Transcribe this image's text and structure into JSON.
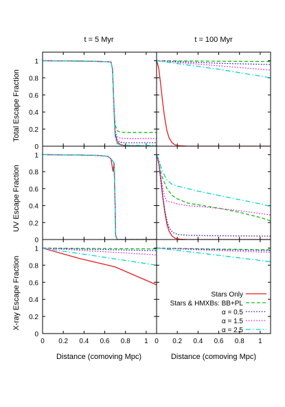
{
  "chart_data": {
    "type": "line",
    "layout": "3x2 grid of panels with shared x axes",
    "column_titles": [
      "t = 5 Myr",
      "t = 100 Myr"
    ],
    "row_ylabels": [
      "Total Escape Fraction",
      "UV Escape Fraction",
      "X-ray Escape Fraction"
    ],
    "xlabel": "Distance (comoving Mpc)",
    "xlim": [
      0,
      1.1
    ],
    "ylim": [
      0,
      1.1
    ],
    "xticks": [
      "0",
      "0.2",
      "0.4",
      "0.6",
      "0.8",
      "1"
    ],
    "yticks": [
      "0",
      "0.2",
      "0.4",
      "0.6",
      "0.8",
      "1"
    ],
    "grid": false,
    "legend": {
      "placement": "bottom-right of x-ray t = 100 Myr panel",
      "entries": [
        {
          "label": "Stars Only",
          "color": "#e41a1c",
          "dash": "solid"
        },
        {
          "label": "Stars & HMXBs: BB+PL",
          "color": "#11bb11",
          "dash": "dashed"
        },
        {
          "label": "α = 0.5",
          "color": "#1a1abb",
          "dash": "dotted"
        },
        {
          "label": "α = 1.5",
          "color": "#dd22dd",
          "dash": "dotted"
        },
        {
          "label": "α = 2.5",
          "color": "#00d4d4",
          "dash": "dashdot"
        }
      ]
    },
    "panels": [
      {
        "row": "Total Escape Fraction",
        "column": "t = 5 Myr",
        "series": [
          {
            "name": "Stars Only",
            "x": [
              0,
              0.4,
              0.6,
              0.66,
              0.675,
              0.69,
              0.7,
              0.72,
              0.75,
              0.8,
              1.1
            ],
            "y": [
              1.0,
              0.995,
              0.99,
              0.985,
              0.9,
              0.4,
              0.15,
              0.05,
              0.02,
              0.005,
              0.0
            ]
          },
          {
            "name": "Stars & HMXBs: BB+PL",
            "x": [
              0,
              0.4,
              0.6,
              0.66,
              0.675,
              0.69,
              0.7,
              0.72,
              0.75,
              0.8,
              1.1
            ],
            "y": [
              1.0,
              0.995,
              0.99,
              0.985,
              0.9,
              0.45,
              0.25,
              0.18,
              0.165,
              0.16,
              0.16
            ]
          },
          {
            "name": "α = 0.5",
            "x": [
              0,
              0.4,
              0.6,
              0.66,
              0.675,
              0.69,
              0.7,
              0.72,
              0.75,
              0.8,
              1.1
            ],
            "y": [
              1.0,
              0.995,
              0.99,
              0.985,
              0.9,
              0.42,
              0.15,
              0.07,
              0.045,
              0.04,
              0.04
            ]
          },
          {
            "name": "α = 1.5",
            "x": [
              0,
              0.4,
              0.6,
              0.66,
              0.675,
              0.69,
              0.7,
              0.72,
              0.75,
              0.8,
              1.1
            ],
            "y": [
              1.0,
              0.995,
              0.99,
              0.985,
              0.9,
              0.44,
              0.18,
              0.11,
              0.095,
              0.09,
              0.09
            ]
          },
          {
            "name": "α = 2.5",
            "x": [
              0,
              0.4,
              0.6,
              0.66,
              0.675,
              0.69,
              0.7,
              0.72,
              0.75,
              0.8,
              1.1
            ],
            "y": [
              1.0,
              0.995,
              0.99,
              0.985,
              0.9,
              0.4,
              0.1,
              0.03,
              0.015,
              0.01,
              0.01
            ]
          }
        ]
      },
      {
        "row": "Total Escape Fraction",
        "column": "t = 100 Myr",
        "series": [
          {
            "name": "Stars Only",
            "x": [
              0,
              0.02,
              0.04,
              0.06,
              0.08,
              0.1,
              0.12,
              0.15,
              0.18,
              0.22,
              0.3,
              1.1
            ],
            "y": [
              1.0,
              0.92,
              0.72,
              0.5,
              0.32,
              0.18,
              0.1,
              0.04,
              0.015,
              0.005,
              0.0,
              0.0
            ]
          },
          {
            "name": "Stars & HMXBs: BB+PL",
            "x": [
              0,
              0.3,
              0.6,
              1.1
            ],
            "y": [
              1.0,
              0.997,
              0.994,
              0.99
            ]
          },
          {
            "name": "α = 0.5",
            "x": [
              0,
              0.3,
              0.6,
              1.1
            ],
            "y": [
              1.0,
              0.985,
              0.97,
              0.955
            ]
          },
          {
            "name": "α = 1.5",
            "x": [
              0,
              0.3,
              0.6,
              1.1
            ],
            "y": [
              1.0,
              0.97,
              0.94,
              0.89
            ]
          },
          {
            "name": "α = 2.5",
            "x": [
              0,
              0.3,
              0.6,
              0.9,
              1.1
            ],
            "y": [
              1.0,
              0.95,
              0.9,
              0.84,
              0.8
            ]
          }
        ]
      },
      {
        "row": "UV Escape Fraction",
        "column": "t = 5 Myr",
        "series": [
          {
            "name": "Stars Only",
            "x": [
              0,
              0.2,
              0.4,
              0.55,
              0.63,
              0.66,
              0.68,
              0.69,
              0.7,
              0.705,
              0.72,
              1.1
            ],
            "y": [
              1.0,
              0.998,
              0.995,
              0.99,
              0.98,
              0.95,
              0.8,
              0.9,
              0.4,
              0.05,
              0.0,
              0.0
            ]
          },
          {
            "name": "Stars & HMXBs: BB+PL",
            "x": [
              0,
              0.2,
              0.4,
              0.55,
              0.63,
              0.66,
              0.68,
              0.69,
              0.7,
              0.705,
              0.72,
              1.1
            ],
            "y": [
              1.0,
              0.998,
              0.995,
              0.99,
              0.98,
              0.95,
              0.92,
              0.9,
              0.4,
              0.05,
              0.0,
              0.0
            ]
          },
          {
            "name": "α = 0.5",
            "x": [
              0,
              0.2,
              0.4,
              0.55,
              0.63,
              0.66,
              0.68,
              0.69,
              0.7,
              0.705,
              0.72,
              1.1
            ],
            "y": [
              1.0,
              0.998,
              0.995,
              0.99,
              0.98,
              0.95,
              0.92,
              0.9,
              0.4,
              0.05,
              0.0,
              0.0
            ]
          },
          {
            "name": "α = 1.5",
            "x": [
              0,
              0.2,
              0.4,
              0.55,
              0.63,
              0.66,
              0.68,
              0.69,
              0.7,
              0.705,
              0.72,
              1.1
            ],
            "y": [
              1.0,
              0.998,
              0.995,
              0.99,
              0.98,
              0.95,
              0.92,
              0.9,
              0.4,
              0.05,
              0.0,
              0.0
            ]
          },
          {
            "name": "α = 2.5",
            "x": [
              0,
              0.2,
              0.4,
              0.55,
              0.63,
              0.66,
              0.68,
              0.69,
              0.7,
              0.705,
              0.72,
              1.1
            ],
            "y": [
              1.0,
              0.998,
              0.995,
              0.99,
              0.98,
              0.95,
              0.92,
              0.9,
              0.4,
              0.05,
              0.0,
              0.0
            ]
          }
        ]
      },
      {
        "row": "UV Escape Fraction",
        "column": "t = 100 Myr",
        "series": [
          {
            "name": "Stars Only",
            "x": [
              0,
              0.02,
              0.04,
              0.06,
              0.08,
              0.1,
              0.12,
              0.15,
              0.18,
              0.22,
              0.3,
              1.1
            ],
            "y": [
              1.0,
              0.92,
              0.72,
              0.5,
              0.32,
              0.18,
              0.1,
              0.04,
              0.015,
              0.005,
              0.0,
              0.0
            ]
          },
          {
            "name": "Stars & HMXBs: BB+PL",
            "x": [
              0,
              0.02,
              0.05,
              0.1,
              0.15,
              0.2,
              0.3,
              0.4,
              0.6,
              0.8,
              1.0,
              1.1
            ],
            "y": [
              1.0,
              0.9,
              0.75,
              0.6,
              0.52,
              0.48,
              0.43,
              0.41,
              0.37,
              0.32,
              0.26,
              0.22
            ]
          },
          {
            "name": "α = 0.5",
            "x": [
              0,
              0.02,
              0.04,
              0.06,
              0.08,
              0.1,
              0.12,
              0.15,
              0.2,
              0.25,
              0.3,
              0.5,
              1.1
            ],
            "y": [
              1.0,
              0.9,
              0.7,
              0.5,
              0.34,
              0.22,
              0.14,
              0.09,
              0.06,
              0.055,
              0.05,
              0.045,
              0.04
            ]
          },
          {
            "name": "α = 1.5",
            "x": [
              0,
              0.02,
              0.04,
              0.06,
              0.08,
              0.1,
              0.15,
              0.2,
              0.3,
              0.5,
              0.8,
              1.1
            ],
            "y": [
              1.0,
              0.9,
              0.75,
              0.6,
              0.5,
              0.45,
              0.44,
              0.42,
              0.4,
              0.38,
              0.34,
              0.29
            ]
          },
          {
            "name": "α = 2.5",
            "x": [
              0,
              0.02,
              0.05,
              0.1,
              0.15,
              0.2,
              0.3,
              0.4,
              0.6,
              0.8,
              1.0,
              1.1
            ],
            "y": [
              1.0,
              0.95,
              0.82,
              0.7,
              0.65,
              0.63,
              0.6,
              0.57,
              0.52,
              0.47,
              0.42,
              0.39
            ]
          }
        ]
      },
      {
        "row": "X-ray Escape Fraction",
        "column": "t = 5 Myr",
        "series": [
          {
            "name": "Stars Only",
            "x": [
              0,
              0.35,
              0.7,
              1.1
            ],
            "y": [
              1.0,
              0.88,
              0.78,
              0.57
            ]
          },
          {
            "name": "Stars & HMXBs: BB+PL",
            "x": [
              0,
              0.5,
              1.1
            ],
            "y": [
              1.0,
              0.995,
              0.99
            ]
          },
          {
            "name": "α = 0.5",
            "x": [
              0,
              0.5,
              1.1
            ],
            "y": [
              1.0,
              0.985,
              0.97
            ]
          },
          {
            "name": "α = 1.5",
            "x": [
              0,
              0.5,
              1.1
            ],
            "y": [
              1.0,
              0.965,
              0.92
            ]
          },
          {
            "name": "α = 2.5",
            "x": [
              0,
              0.5,
              1.1
            ],
            "y": [
              1.0,
              0.91,
              0.8
            ]
          }
        ]
      },
      {
        "row": "X-ray Escape Fraction",
        "column": "t = 100 Myr",
        "series": [
          {
            "name": "Stars & HMXBs: BB+PL",
            "x": [
              0,
              0.5,
              1.1
            ],
            "y": [
              1.0,
              0.99,
              0.98
            ]
          },
          {
            "name": "α = 0.5",
            "x": [
              0,
              0.5,
              1.1
            ],
            "y": [
              1.0,
              0.985,
              0.97
            ]
          },
          {
            "name": "α = 1.5",
            "x": [
              0,
              0.5,
              1.1
            ],
            "y": [
              1.0,
              0.975,
              0.95
            ]
          },
          {
            "name": "α = 2.5",
            "x": [
              0,
              0.5,
              1.1
            ],
            "y": [
              1.0,
              0.93,
              0.84
            ]
          }
        ]
      }
    ]
  }
}
